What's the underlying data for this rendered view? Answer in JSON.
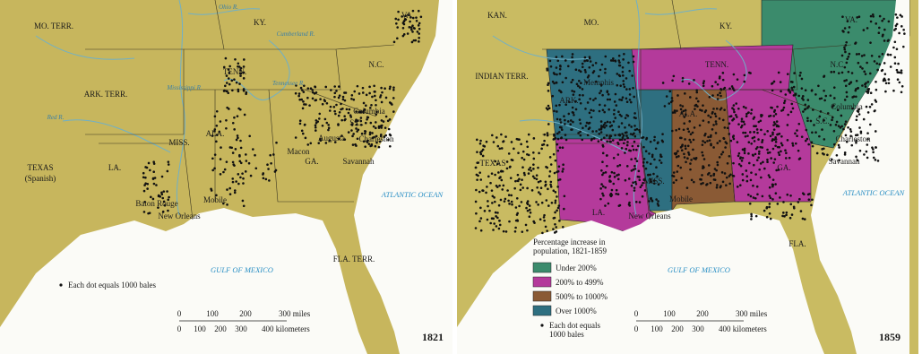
{
  "maps": [
    {
      "year": "1821",
      "labels": [
        "MO. TERR.",
        "KY.",
        "VA.",
        "TENN.",
        "N.C.",
        "ARK. TERR.",
        "S.C.",
        "Columbia",
        "ALA.",
        "MISS.",
        "Augusta",
        "Charleston",
        "Macon",
        "GA.",
        "Savannah",
        "TEXAS",
        "(Spanish)",
        "LA.",
        "Baton Rouge",
        "Mobile",
        "New Orleans",
        "ATLANTIC OCEAN",
        "GULF OF MEXICO",
        "FLA. TERR.",
        "Ohio R.",
        "Cumberland R.",
        "Tennessee R.",
        "Red R.",
        "Mississippi R."
      ],
      "dot_note": "Each dot equals 1000 bales",
      "scale": {
        "miles": [
          "0",
          "100",
          "200",
          "300 miles"
        ],
        "kilometers": [
          "0",
          "100",
          "200",
          "300",
          "400 kilometers"
        ]
      }
    },
    {
      "year": "1859",
      "labels": [
        "KAN.",
        "MO.",
        "KY.",
        "VA.",
        "INDIAN TERR.",
        "TENN.",
        "N.C.",
        "Memphis",
        "ARK.",
        "ALA.",
        "Columbia",
        "S.C.",
        "Charleston",
        "TEXAS",
        "MISS.",
        "GA.",
        "Savannah",
        "LA.",
        "Mobile",
        "New Orleans",
        "ATLANTIC OCEAN",
        "GULF OF MEXICO",
        "FLA."
      ],
      "legend": {
        "title": [
          "Percentage increase in",
          "population, 1821-1859"
        ],
        "items": [
          {
            "label": "Under 200%",
            "color": "#3b8b6c"
          },
          {
            "label": "200% to 499%",
            "color": "#b43a9b"
          },
          {
            "label": "500% to 1000%",
            "color": "#8a5a35"
          },
          {
            "label": "Over 1000%",
            "color": "#2e6f80"
          }
        ]
      },
      "dot_note": [
        "Each dot equals",
        "1000 bales"
      ],
      "scale": {
        "miles": [
          "0",
          "100",
          "200",
          "300 miles"
        ],
        "kilometers": [
          "0",
          "100",
          "200",
          "300",
          "400 kilometers"
        ]
      }
    }
  ]
}
